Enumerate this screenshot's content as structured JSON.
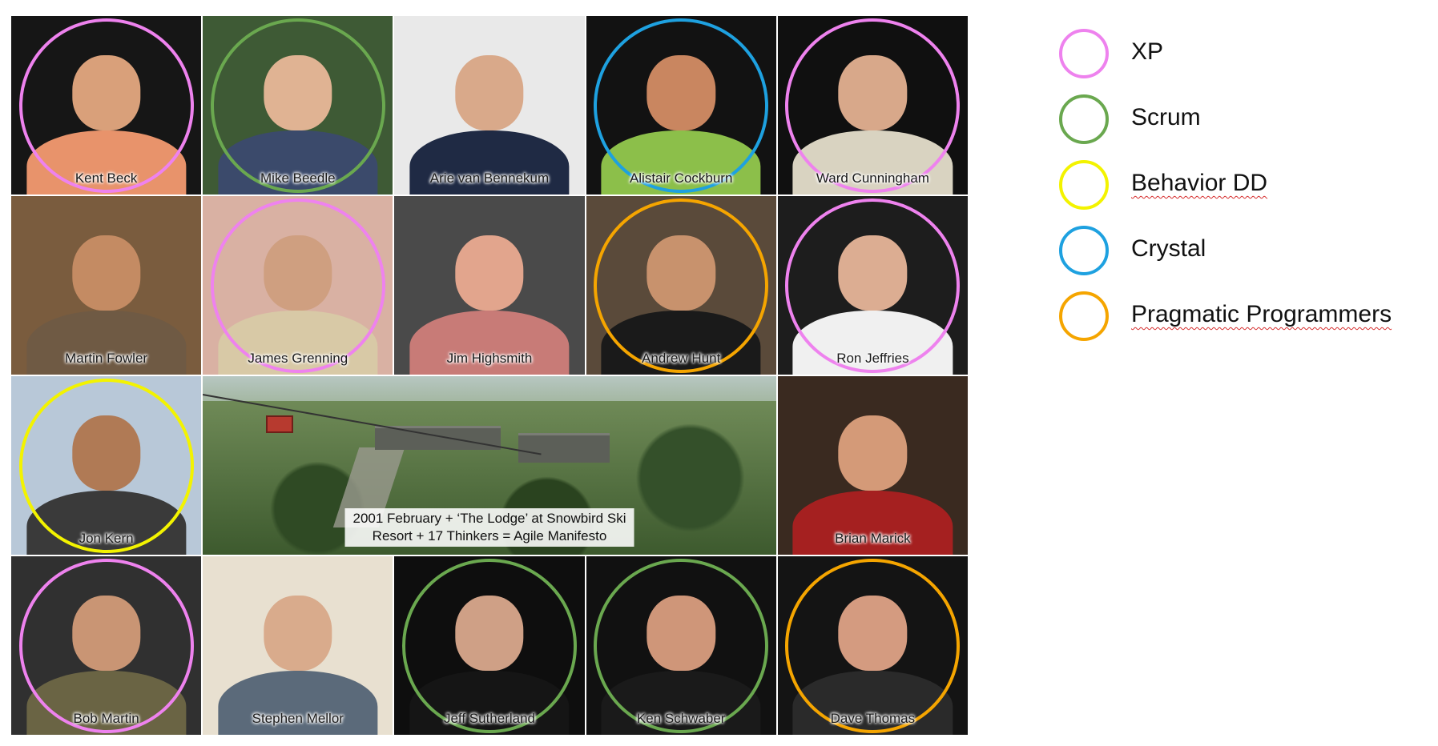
{
  "people": [
    {
      "name": "Kent Beck",
      "ring": "#ee82ee",
      "bg": "#161616",
      "skin": "#d9a07a",
      "shirt": "#e8936b"
    },
    {
      "name": "Mike Beedle",
      "ring": "#6aa84f",
      "bg": "#3e5a35",
      "skin": "#e0b393",
      "shirt": "#3b4a6b"
    },
    {
      "name": "Arie van Bennekum",
      "ring": "",
      "bg": "#e9e9e9",
      "skin": "#d9a98a",
      "shirt": "#1f2a44"
    },
    {
      "name": "Alistair Cockburn",
      "ring": "#1ea1e0",
      "bg": "#121212",
      "skin": "#c98660",
      "shirt": "#8cbf4a"
    },
    {
      "name": "Ward Cunningham",
      "ring": "#ee82ee",
      "bg": "#101010",
      "skin": "#d8a88a",
      "shirt": "#d9d3c1"
    },
    {
      "name": "Martin Fowler",
      "ring": "",
      "bg": "#7a5c3e",
      "skin": "#c48b63",
      "shirt": "#6f5a44"
    },
    {
      "name": "James Grenning",
      "ring": "#ee82ee",
      "bg": "#d9b1a3",
      "skin": "#cf9f80",
      "shirt": "#d8c9a6"
    },
    {
      "name": "Jim Highsmith",
      "ring": "",
      "bg": "#4a4a4a",
      "skin": "#e2a58d",
      "shirt": "#c87b77"
    },
    {
      "name": "Andrew Hunt",
      "ring": "#f5a500",
      "bg": "#5a4a3a",
      "skin": "#c8926d",
      "shirt": "#1a1a1a"
    },
    {
      "name": "Ron Jeffries",
      "ring": "#ee82ee",
      "bg": "#1d1d1d",
      "skin": "#dcad92",
      "shirt": "#f0f0f0"
    },
    {
      "name": "Jon Kern",
      "ring": "#f3f300",
      "bg": "#b8c8d8",
      "skin": "#b07a55",
      "shirt": "#3a3a3a"
    },
    {
      "name": "Brian Marick",
      "ring": "",
      "bg": "#3a2a20",
      "skin": "#d49a78",
      "shirt": "#a52020"
    },
    {
      "name": "Bob Martin",
      "ring": "#ee82ee",
      "bg": "#303030",
      "skin": "#c99574",
      "shirt": "#6a6444"
    },
    {
      "name": "Stephen Mellor",
      "ring": "",
      "bg": "#e8e0d0",
      "skin": "#d9ab8c",
      "shirt": "#5b6a7a"
    },
    {
      "name": "Jeff Sutherland",
      "ring": "#6aa84f",
      "bg": "#0e0e0e",
      "skin": "#cfa086",
      "shirt": "#151515"
    },
    {
      "name": "Ken Schwaber",
      "ring": "#6aa84f",
      "bg": "#111111",
      "skin": "#cf9679",
      "shirt": "#1a1a1a"
    },
    {
      "name": "Dave Thomas",
      "ring": "#f5a500",
      "bg": "#141414",
      "skin": "#d49b80",
      "shirt": "#2a2a2a"
    }
  ],
  "caption": {
    "line1": "2001 February + ‘The Lodge’ at Snowbird Ski",
    "line2": "Resort + 17 Thinkers = Agile Manifesto"
  },
  "legend": [
    {
      "label": "XP",
      "color": "#ee82ee",
      "squiggle": false
    },
    {
      "label": "Scrum",
      "color": "#6aa84f",
      "squiggle": false
    },
    {
      "label": "Behavior DD",
      "color": "#f3f300",
      "squiggle": true
    },
    {
      "label": "Crystal",
      "color": "#1ea1e0",
      "squiggle": false
    },
    {
      "label": "Pragmatic Programmers",
      "color": "#f5a500",
      "squiggle": true
    }
  ]
}
